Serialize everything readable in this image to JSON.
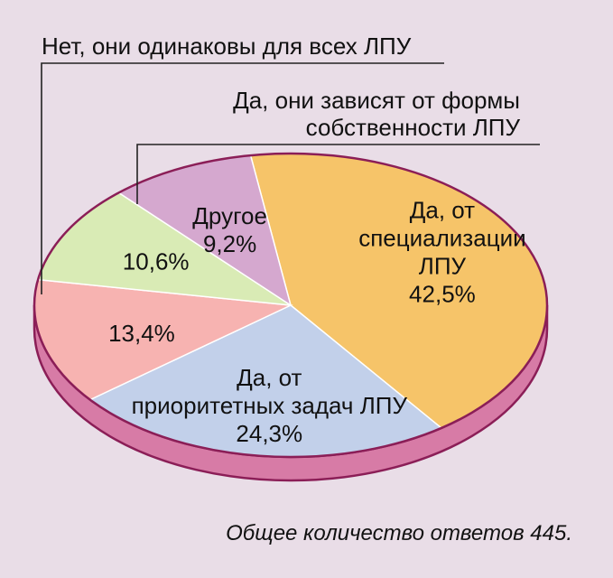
{
  "chart_data": {
    "type": "pie",
    "slices": [
      {
        "label": "Да, от специализации ЛПУ",
        "lines": [
          "Да, от",
          "специализации",
          "ЛПУ"
        ],
        "value": 42.5,
        "value_text": "42,5%",
        "color": "#f6c469"
      },
      {
        "label": "Да, от приоритетных задач ЛПУ",
        "lines": [
          "Да, от",
          "приоритетных задач ЛПУ"
        ],
        "value": 24.3,
        "value_text": "24,3%",
        "color": "#c2d0ea"
      },
      {
        "label": "Нет, они одинаковы для всех ЛПУ",
        "lines": [],
        "value": 13.4,
        "value_text": "13,4%",
        "color": "#f7b3b1"
      },
      {
        "label": "Да, они зависят от формы собственности ЛПУ",
        "lines": [],
        "value": 10.6,
        "value_text": "10,6%",
        "color": "#d9ebb5"
      },
      {
        "label": "Другое",
        "lines": [
          "Другое"
        ],
        "value": 9.2,
        "value_text": "9,2%",
        "color": "#d5a8cf"
      }
    ],
    "callouts": [
      {
        "lines": [
          "Нет, они одинаковы для всех ЛПУ"
        ]
      },
      {
        "lines": [
          "Да, они зависят от формы",
          "собственности ЛПУ"
        ]
      }
    ],
    "side_color": "#d77ba6",
    "outline_color": "#8b1e57",
    "footnote": "Общее количество ответов 445."
  }
}
